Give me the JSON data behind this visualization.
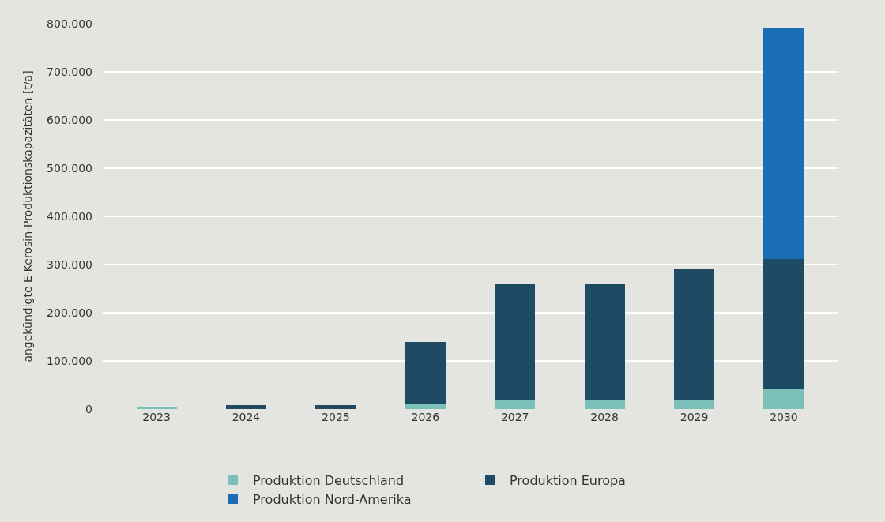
{
  "chart_data": {
    "type": "bar",
    "stacked": true,
    "ylabel": "angekündigte E-Kerosin-Produktionskapazitäten [t/a]",
    "categories": [
      "2023",
      "2024",
      "2025",
      "2026",
      "2027",
      "2028",
      "2029",
      "2030"
    ],
    "series": [
      {
        "name": "Produktion Deutschland",
        "color": "#7bbfb9",
        "values": [
          2000,
          0,
          0,
          12000,
          18000,
          18000,
          18000,
          42000
        ]
      },
      {
        "name": "Produktion Europa",
        "color": "#1e4a63",
        "values": [
          0,
          8000,
          8000,
          128000,
          242000,
          242000,
          272000,
          270000
        ]
      },
      {
        "name": "Produktion Nord-Amerika",
        "color": "#1a6eb5",
        "values": [
          0,
          0,
          0,
          0,
          0,
          0,
          0,
          478000
        ]
      }
    ],
    "ylim": [
      0,
      800000
    ],
    "yticks": [
      {
        "value": 0,
        "label": "0"
      },
      {
        "value": 100000,
        "label": "100.000"
      },
      {
        "value": 200000,
        "label": "200.000"
      },
      {
        "value": 300000,
        "label": "300.000"
      },
      {
        "value": 400000,
        "label": "400.000"
      },
      {
        "value": 500000,
        "label": "500.000"
      },
      {
        "value": 600000,
        "label": "600.000"
      },
      {
        "value": 700000,
        "label": "700.000"
      },
      {
        "value": 800000,
        "label": "800.000"
      }
    ],
    "grid": "y",
    "legend": "bottom"
  }
}
